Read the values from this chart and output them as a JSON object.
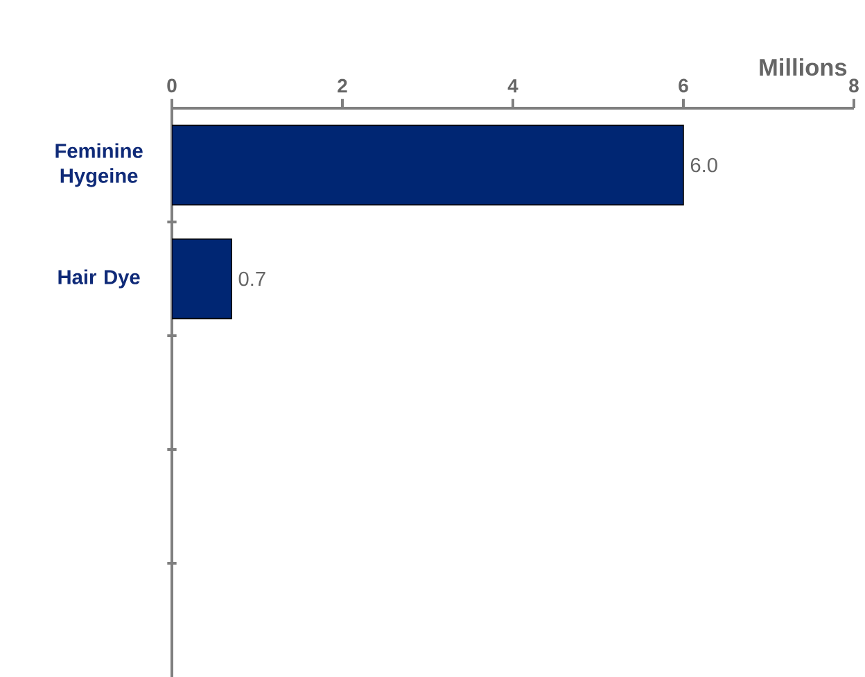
{
  "chart_data": {
    "type": "bar",
    "orientation": "horizontal",
    "xlabel": "Millions",
    "categories": [
      "Feminine Hygeine",
      "Hair Dye",
      null,
      null,
      null
    ],
    "values": [
      6.0,
      0.7,
      null,
      null,
      null
    ],
    "value_labels": [
      "6.0",
      "0.7",
      null,
      null,
      null
    ],
    "color": "#002673",
    "xlim": [
      0,
      8
    ],
    "xticks": [
      0,
      2,
      4,
      6,
      8
    ]
  }
}
